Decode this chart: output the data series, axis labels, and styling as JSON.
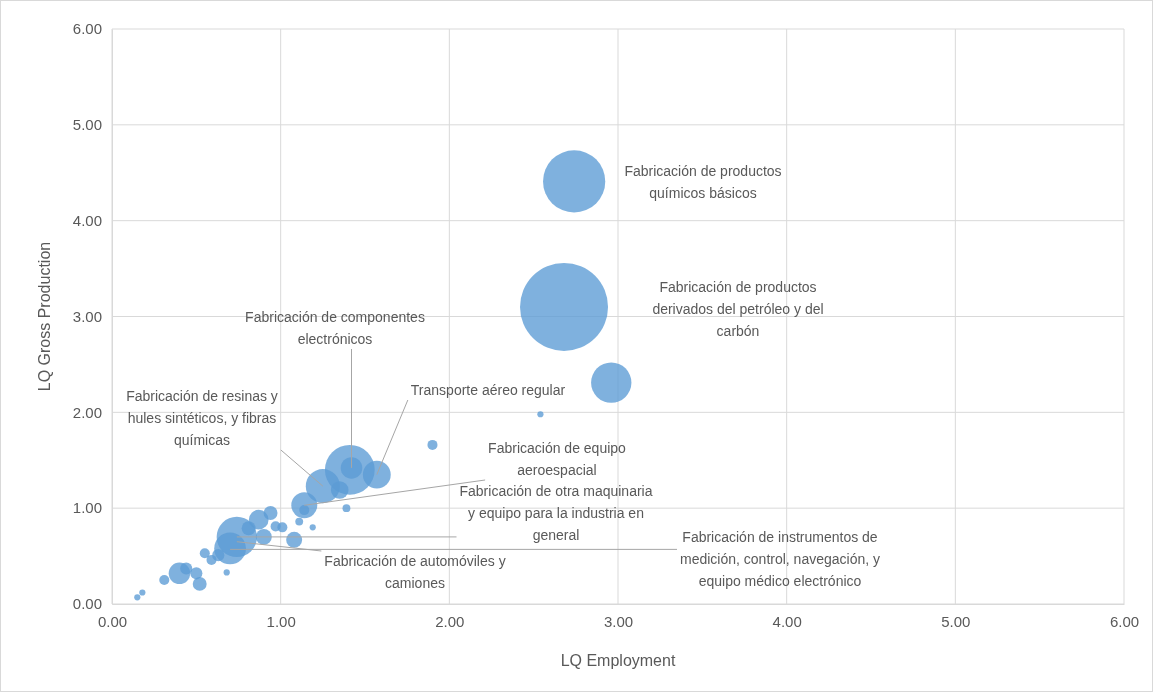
{
  "chart_data": {
    "type": "bubble",
    "xlabel": "LQ Employment",
    "ylabel": "LQ Gross Production",
    "xlim": [
      0,
      6
    ],
    "ylim": [
      0,
      6
    ],
    "xticks": [
      {
        "value": 0,
        "label": "0.00"
      },
      {
        "value": 1,
        "label": "1.00"
      },
      {
        "value": 2,
        "label": "2.00"
      },
      {
        "value": 3,
        "label": "3.00"
      },
      {
        "value": 4,
        "label": "4.00"
      },
      {
        "value": 5,
        "label": "5.00"
      },
      {
        "value": 6,
        "label": "6.00"
      }
    ],
    "yticks": [
      {
        "value": 0,
        "label": "0.00"
      },
      {
        "value": 1,
        "label": "1.00"
      },
      {
        "value": 2,
        "label": "2.00"
      },
      {
        "value": 3,
        "label": "3.00"
      },
      {
        "value": 4,
        "label": "4.00"
      },
      {
        "value": 5,
        "label": "5.00"
      },
      {
        "value": 6,
        "label": "6.00"
      }
    ],
    "grid": true,
    "series": [
      {
        "color": "#5b9bd5",
        "x": [
          2.74,
          2.68,
          2.96,
          2.54,
          1.9,
          1.41,
          1.42,
          1.57,
          1.25,
          1.14,
          1.35,
          1.39,
          1.14,
          0.74,
          0.7,
          0.87,
          0.94,
          1.08,
          1.11,
          1.19,
          1.01,
          0.4,
          0.31,
          0.52,
          0.5,
          0.44,
          0.55,
          0.59,
          0.63,
          0.15,
          0.18,
          0.68,
          0.9,
          0.97,
          0.81
        ],
        "values": [
          4.41,
          3.1,
          2.31,
          1.98,
          1.66,
          1.4,
          1.42,
          1.35,
          1.23,
          1.03,
          1.19,
          1.0,
          0.98,
          0.7,
          0.58,
          0.88,
          0.95,
          0.67,
          0.86,
          0.8,
          0.8,
          0.32,
          0.25,
          0.21,
          0.32,
          0.37,
          0.53,
          0.46,
          0.51,
          0.07,
          0.12,
          0.33,
          0.7,
          0.81,
          0.79
        ],
        "sizes": [
          0.5,
          1,
          0.21,
          0.005,
          0.013,
          0.32,
          0.06,
          0.1,
          0.15,
          0.087,
          0.04,
          0.008,
          0.013,
          0.21,
          0.13,
          0.05,
          0.025,
          0.033,
          0.008,
          0.005,
          0.013,
          0.06,
          0.013,
          0.025,
          0.019,
          0.019,
          0.013,
          0.013,
          0.019,
          0.005,
          0.005,
          0.005,
          0.033,
          0.013,
          0.025
        ]
      }
    ],
    "annotations": [
      "Fabricación de productos químicos básicos",
      "Fabricación de productos derivados del petróleo y del carbón",
      {
        "text": "Fabricación de componentes electrónicos",
        "x": 1.42,
        "y": 1.42
      },
      {
        "text": "Transporte aéreo regular",
        "x": 1.57,
        "y": 1.35
      },
      {
        "text": "Fabricación de resinas y hules sintéticos, y fibras químicas",
        "x": 1.25,
        "y": 1.23
      },
      {
        "text": "Fabricación de equipo aeroespacial",
        "x": 1.14,
        "y": 1.03
      },
      {
        "text": "Fabricación de otra maquinaria y equipo para la industria en general",
        "x": 0.74,
        "y": 0.7
      },
      {
        "text": "Fabricación de automóviles y camiones",
        "x": 0.74,
        "y": 0.65
      },
      {
        "text": "Fabricación de instrumentos de medición, control, navegación, y equipo médico electrónico",
        "x": 0.7,
        "y": 0.57
      }
    ]
  }
}
